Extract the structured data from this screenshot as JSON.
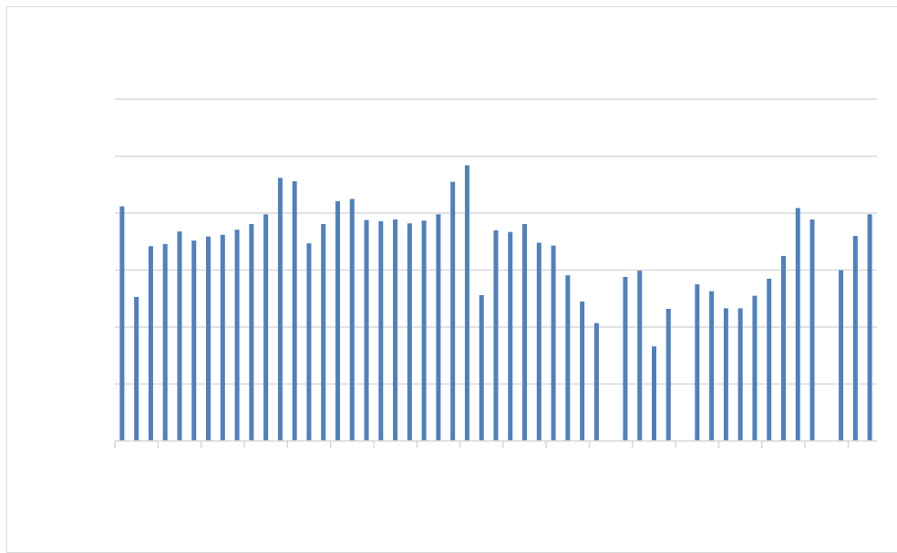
{
  "chart_data": {
    "type": "bar",
    "title": "",
    "xlabel": "",
    "ylabel": "",
    "ylim": [
      0,
      6
    ],
    "grid": true,
    "legend": "none",
    "bar_color": "#4f81bd",
    "gridline_color": "#d9d9d9",
    "axis_color": "#d9d9d9",
    "x_tick_every": 3,
    "values": [
      4.12,
      2.53,
      3.42,
      3.46,
      3.68,
      3.52,
      3.59,
      3.62,
      3.71,
      3.81,
      3.98,
      4.62,
      4.56,
      3.47,
      3.81,
      4.21,
      4.25,
      3.88,
      3.86,
      3.89,
      3.82,
      3.87,
      3.98,
      4.55,
      4.84,
      2.56,
      3.7,
      3.67,
      3.81,
      3.48,
      3.43,
      2.91,
      2.45,
      2.07,
      0,
      2.88,
      2.99,
      1.66,
      2.32,
      0,
      2.75,
      2.63,
      2.33,
      2.33,
      2.55,
      2.85,
      3.25,
      4.09,
      3.89,
      0,
      3.0,
      3.6,
      3.98
    ]
  }
}
